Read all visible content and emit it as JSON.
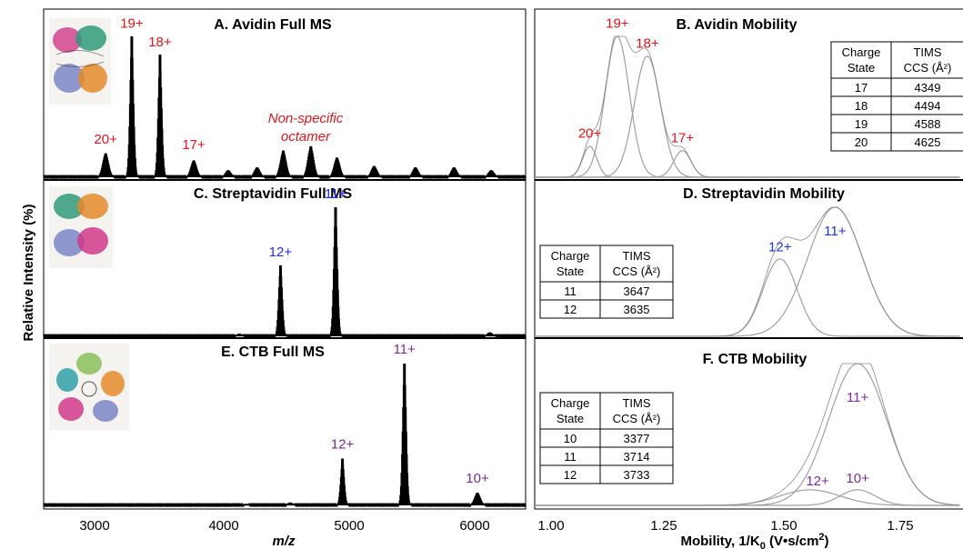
{
  "y_label": "Relative Intensity (%)",
  "colors": {
    "avidin": "#e8141a",
    "streptavidin": "#1b2ff0",
    "ctb": "#7a2aa0",
    "mobility_trace": "#a0a0a0"
  },
  "protein_icons": [
    "avidin-tetramer-ribbon",
    "streptavidin-tetramer-ribbon",
    "ctb-pentamer-ribbon"
  ],
  "chart_data": [
    {
      "type": "line",
      "panel": "A",
      "title": "A. Avidin Full MS",
      "xlabel": "m/z",
      "xlim": [
        2700,
        6200
      ],
      "ylim": [
        0,
        100
      ],
      "xticks": [
        "3000",
        "4000",
        "5000",
        "6000"
      ],
      "peaks": [
        {
          "x": 3150,
          "y": 17
        },
        {
          "x": 3340,
          "y": 100
        },
        {
          "x": 3545,
          "y": 87
        },
        {
          "x": 3790,
          "y": 12
        },
        {
          "x": 4040,
          "y": 5
        },
        {
          "x": 4250,
          "y": 7
        },
        {
          "x": 4440,
          "y": 19
        },
        {
          "x": 4640,
          "y": 22
        },
        {
          "x": 4830,
          "y": 14
        },
        {
          "x": 5100,
          "y": 8
        },
        {
          "x": 5400,
          "y": 7
        },
        {
          "x": 5680,
          "y": 7
        },
        {
          "x": 5950,
          "y": 5
        }
      ],
      "annotations": [
        {
          "text": "20+",
          "x": 3150,
          "y": 24
        },
        {
          "text": "19+",
          "x": 3340,
          "y": 106
        },
        {
          "text": "18+",
          "x": 3545,
          "y": 93
        },
        {
          "text": "17+",
          "x": 3790,
          "y": 20
        }
      ],
      "note": {
        "lines": [
          "Non-specific",
          "octamer"
        ],
        "x": 4660,
        "y": 58
      }
    },
    {
      "type": "line",
      "panel": "B",
      "title": "B. Avidin Mobility",
      "xlabel": "Mobility, 1/K",
      "xlim": [
        1.0,
        1.85
      ],
      "ylim": [
        0,
        100
      ],
      "series": [
        {
          "name": "20+",
          "center": 1.11,
          "width": 0.014,
          "height": 22
        },
        {
          "name": "19+",
          "center": 1.165,
          "width": 0.024,
          "height": 100
        },
        {
          "name": "18+",
          "center": 1.225,
          "width": 0.026,
          "height": 86
        },
        {
          "name": "17+",
          "center": 1.295,
          "width": 0.017,
          "height": 19
        }
      ],
      "annotations": [
        {
          "text": "20+",
          "x": 1.11,
          "y": 28
        },
        {
          "text": "19+",
          "x": 1.165,
          "y": 106
        },
        {
          "text": "18+",
          "x": 1.225,
          "y": 92
        },
        {
          "text": "17+",
          "x": 1.295,
          "y": 25
        }
      ],
      "table": {
        "headers": [
          "Charge State",
          "TIMS CCS (Å²)"
        ],
        "rows": [
          [
            "17",
            "4349"
          ],
          [
            "18",
            "4494"
          ],
          [
            "19",
            "4588"
          ],
          [
            "20",
            "4625"
          ]
        ]
      }
    },
    {
      "type": "line",
      "panel": "C",
      "title": "C. Streptavidin Full MS",
      "xlabel": "m/z",
      "xlim": [
        2700,
        6200
      ],
      "ylim": [
        0,
        100
      ],
      "peaks": [
        {
          "x": 4420,
          "y": 55
        },
        {
          "x": 4820,
          "y": 100
        },
        {
          "x": 4120,
          "y": 2
        },
        {
          "x": 5940,
          "y": 3
        }
      ],
      "annotations": [
        {
          "text": "12+",
          "x": 4420,
          "y": 62
        },
        {
          "text": "11+",
          "x": 4820,
          "y": 107
        }
      ]
    },
    {
      "type": "line",
      "panel": "D",
      "title": "D. Streptavidin Mobility",
      "xlabel": "Mobility, 1/K",
      "xlim": [
        1.0,
        1.85
      ],
      "ylim": [
        0,
        100
      ],
      "series": [
        {
          "name": "12+",
          "center": 1.49,
          "width": 0.034,
          "height": 60
        },
        {
          "name": "11+",
          "center": 1.6,
          "width": 0.055,
          "height": 100
        }
      ],
      "annotations": [
        {
          "text": "12+",
          "x": 1.49,
          "y": 66
        },
        {
          "text": "11+",
          "x": 1.6,
          "y": 78
        }
      ],
      "table": {
        "headers": [
          "Charge State",
          "TIMS CCS (Å²)"
        ],
        "rows": [
          [
            "11",
            "3647"
          ],
          [
            "12",
            "3635"
          ]
        ]
      }
    },
    {
      "type": "line",
      "panel": "E",
      "title": "E. CTB Full MS",
      "xlabel": "m/z",
      "xlim": [
        2700,
        6200
      ],
      "ylim": [
        0,
        100
      ],
      "xticks": [
        "3000",
        "4000",
        "5000",
        "6000"
      ],
      "peaks": [
        {
          "x": 4870,
          "y": 33
        },
        {
          "x": 5320,
          "y": 100
        },
        {
          "x": 5850,
          "y": 9
        },
        {
          "x": 4490,
          "y": 2
        },
        {
          "x": 4170,
          "y": 1
        }
      ],
      "annotations": [
        {
          "text": "12+",
          "x": 4870,
          "y": 40
        },
        {
          "text": "11+",
          "x": 5320,
          "y": 107
        },
        {
          "text": "10+",
          "x": 5850,
          "y": 16
        }
      ]
    },
    {
      "type": "line",
      "panel": "F",
      "title": "F. CTB Mobility",
      "xlabel": "Mobility, 1/K",
      "xlim": [
        1.0,
        1.85
      ],
      "ylim": [
        0,
        100
      ],
      "xticks": [
        "1.00",
        "1.25",
        "1.50",
        "1.75"
      ],
      "series": [
        {
          "name": "12+",
          "center": 1.55,
          "width": 0.06,
          "height": 11
        },
        {
          "name": "11+",
          "center": 1.645,
          "width": 0.058,
          "height": 100
        },
        {
          "name": "10+",
          "center": 1.645,
          "width": 0.035,
          "height": 11
        }
      ],
      "annotations": [
        {
          "text": "12+",
          "x": 1.565,
          "y": 14
        },
        {
          "text": "11+",
          "x": 1.645,
          "y": 73
        },
        {
          "text": "10+",
          "x": 1.645,
          "y": 16
        }
      ],
      "table": {
        "headers": [
          "Charge State",
          "TIMS CCS (Å²)"
        ],
        "rows": [
          [
            "10",
            "3377"
          ],
          [
            "11",
            "3714"
          ],
          [
            "12",
            "3733"
          ]
        ]
      }
    }
  ],
  "x_axis_labels": {
    "ms": "m/z",
    "mobility_main": "Mobility, 1/K",
    "mobility_sub": "0",
    "mobility_unit": " (V•s/cm",
    "mobility_sup": "2",
    "mobility_close": ")"
  }
}
